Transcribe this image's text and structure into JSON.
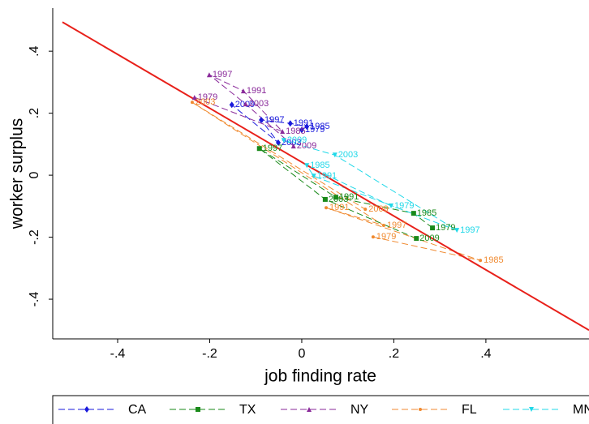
{
  "chart_data": {
    "type": "scatter",
    "xlabel": "job finding rate",
    "ylabel": "worker surplus",
    "xlim": [
      -0.541,
      0.624
    ],
    "ylim": [
      -0.528,
      0.539
    ],
    "xticks": [
      {
        "value": -0.4,
        "label": "-.4"
      },
      {
        "value": -0.2,
        "label": "-.2"
      },
      0,
      {
        "value": 0.2,
        "label": ".2"
      },
      {
        "value": 0.4,
        "label": ".4"
      }
    ],
    "yticks": [
      {
        "value": -0.4,
        "label": "-.4"
      },
      {
        "value": -0.2,
        "label": "-.2"
      },
      0,
      {
        "value": 0.2,
        "label": ".2"
      },
      {
        "value": 0.4,
        "label": ".4"
      }
    ],
    "fit": {
      "color": "#e8201a",
      "x": [
        -0.52,
        0.624
      ],
      "y": [
        0.494,
        -0.5
      ]
    },
    "series": [
      {
        "name": "CA",
        "color": "#1a1adc",
        "marker": "diamond",
        "labels": [
          "1979",
          "1985",
          "1991",
          "1997",
          "2003",
          "2009"
        ],
        "x": [
          0.0,
          0.011,
          -0.025,
          -0.088,
          -0.051,
          -0.152
        ],
        "y": [
          0.146,
          0.157,
          0.167,
          0.178,
          0.105,
          0.227
        ]
      },
      {
        "name": "TX",
        "color": "#1a8a1a",
        "marker": "square",
        "labels": [
          "1979",
          "1985",
          "1991",
          "1997",
          "2003",
          "2009"
        ],
        "x": [
          0.284,
          0.243,
          0.074,
          -0.092,
          0.051,
          0.249
        ],
        "y": [
          -0.17,
          -0.123,
          -0.071,
          0.086,
          -0.078,
          -0.204
        ]
      },
      {
        "name": "NY",
        "color": "#8a2a9a",
        "marker": "triangle",
        "labels": [
          "1979",
          "1985",
          "1991",
          "1997",
          "2003",
          "2009"
        ],
        "x": [
          -0.233,
          -0.042,
          -0.127,
          -0.201,
          -0.122,
          -0.018
        ],
        "y": [
          0.251,
          0.141,
          0.272,
          0.324,
          0.23,
          0.094
        ]
      },
      {
        "name": "FL",
        "color": "#f08a30",
        "marker": "dot",
        "labels": [
          "1979",
          "1985",
          "1991",
          "1997",
          "2003",
          "2009"
        ],
        "x": [
          0.155,
          0.388,
          0.053,
          0.178,
          -0.238,
          0.138
        ],
        "y": [
          -0.199,
          -0.275,
          -0.105,
          -0.162,
          0.235,
          -0.11
        ]
      },
      {
        "name": "MN",
        "color": "#20d8e8",
        "marker": "arrow",
        "labels": [
          "1979",
          "1985",
          "1991",
          "1997",
          "2003",
          "2009"
        ],
        "x": [
          0.194,
          0.011,
          0.026,
          0.337,
          0.072,
          -0.039
        ],
        "y": [
          -0.099,
          0.031,
          -0.003,
          -0.178,
          0.065,
          0.112
        ]
      }
    ]
  }
}
